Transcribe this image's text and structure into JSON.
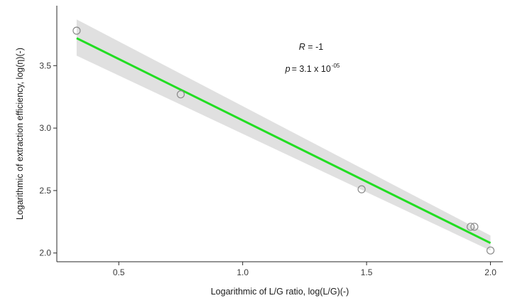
{
  "chart_data": {
    "type": "scatter",
    "xlabel": "Logarithmic of L/G ratio, log(L/G)(-)",
    "ylabel": "Logarithmic of extraction efficiency, log(η)(-)",
    "xlim": [
      0.25,
      2.05
    ],
    "ylim": [
      1.93,
      3.98
    ],
    "x_ticks": [
      0.5,
      1.0,
      1.5,
      2.0
    ],
    "x_tick_labels": [
      "0.5",
      "1.0",
      "1.5",
      "2.0"
    ],
    "y_ticks": [
      2.0,
      2.5,
      3.0,
      3.5
    ],
    "y_tick_labels": [
      "2.0",
      "2.5",
      "3.0",
      "3.5"
    ],
    "points": [
      {
        "x": 0.33,
        "y": 3.78
      },
      {
        "x": 0.75,
        "y": 3.27
      },
      {
        "x": 1.48,
        "y": 2.51
      },
      {
        "x": 1.92,
        "y": 2.21
      },
      {
        "x": 1.935,
        "y": 2.21
      },
      {
        "x": 2.0,
        "y": 2.02
      }
    ],
    "fit": {
      "x": [
        0.33,
        2.0
      ],
      "y": [
        3.72,
        2.08
      ],
      "ci_upper": [
        3.87,
        2.14
      ],
      "ci_lower": [
        3.58,
        2.02
      ]
    },
    "annotation": {
      "r_label": "R",
      "r_value": " = -1",
      "p_label": "p",
      "p_value": "= 3.1 x 10",
      "p_exponent": "-05"
    },
    "grid": false,
    "legend": "none",
    "colors": {
      "fit_line": "#22dd22",
      "ci_band": "#e0e0e0",
      "points": "#8a8a8a",
      "axis": "#2a2a2a"
    }
  }
}
